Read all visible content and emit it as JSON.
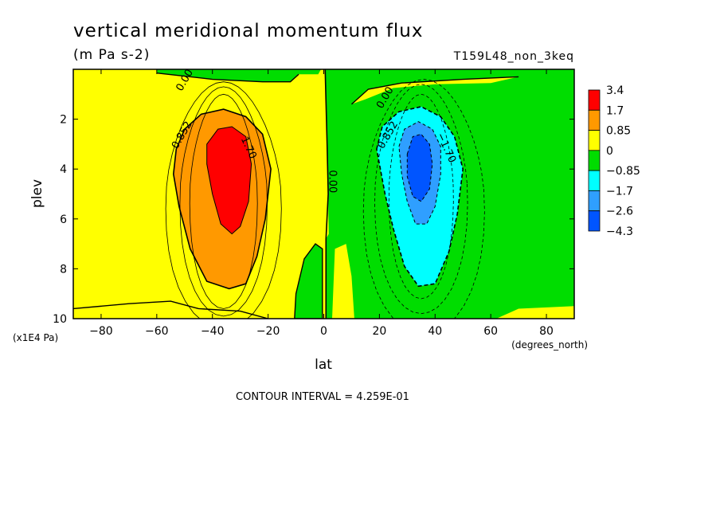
{
  "chart_data": {
    "type": "heatmap",
    "title": "vertical meridional momentum flux",
    "units": "(m Pa s-2)",
    "run_label": "T159L48_non_3keq",
    "xlabel": "lat",
    "x_unit_note": "(degrees_north)",
    "ylabel": "plev",
    "y_unit_note": "(x1E4 Pa)",
    "xlim": [
      -90,
      90
    ],
    "ylim": [
      10,
      0
    ],
    "y_inverted": true,
    "xticks": [
      {
        "value": -80,
        "label": "−80"
      },
      {
        "value": -60,
        "label": "−60"
      },
      {
        "value": -40,
        "label": "−40"
      },
      {
        "value": -20,
        "label": "−20"
      },
      {
        "value": 0,
        "label": "0"
      },
      {
        "value": 20,
        "label": "20"
      },
      {
        "value": 40,
        "label": "40"
      },
      {
        "value": 60,
        "label": "60"
      },
      {
        "value": 80,
        "label": "80"
      }
    ],
    "yticks": [
      {
        "value": 2,
        "label": "2"
      },
      {
        "value": 4,
        "label": "4"
      },
      {
        "value": 6,
        "label": "6"
      },
      {
        "value": 8,
        "label": "8"
      },
      {
        "value": 10,
        "label": "10"
      }
    ],
    "grid": false,
    "legend": "colorbar-right",
    "colorbar": {
      "ticks": [
        "3.4",
        "1.7",
        "0.85",
        "0",
        "−0.85",
        "−1.7",
        "−2.6",
        "−4.3"
      ],
      "colors": [
        "#ff0000",
        "#ff9900",
        "#ffff00",
        "#00dd00",
        "#00ffff",
        "#2f9fff",
        "#0055ff"
      ]
    },
    "field": {
      "description_values": "maxima at about lat -35, plev 4 and minima at about lat 35, plev 3.5",
      "positive_center": {
        "lat": -35,
        "plev": 4.0,
        "peak": 3.4
      },
      "negative_center": {
        "lat": 34,
        "plev": 3.7,
        "peak": -4.3
      }
    },
    "contour_labels": [
      {
        "text": "0.00",
        "lat": -49,
        "plev": 0.5
      },
      {
        "text": "0.852",
        "lat": -50,
        "plev": 2.7
      },
      {
        "text": "1.70",
        "lat": -28,
        "plev": 3.2
      },
      {
        "text": "0.00",
        "lat": 2,
        "plev": 4.5
      },
      {
        "text": "0.00",
        "lat": 23,
        "plev": 1.2
      },
      {
        "text": "0.852",
        "lat": 24,
        "plev": 2.7
      },
      {
        "text": "−1.70",
        "lat": 43,
        "plev": 3.2
      }
    ],
    "contour_interval_label": "CONTOUR INTERVAL = 4.259E-01"
  }
}
